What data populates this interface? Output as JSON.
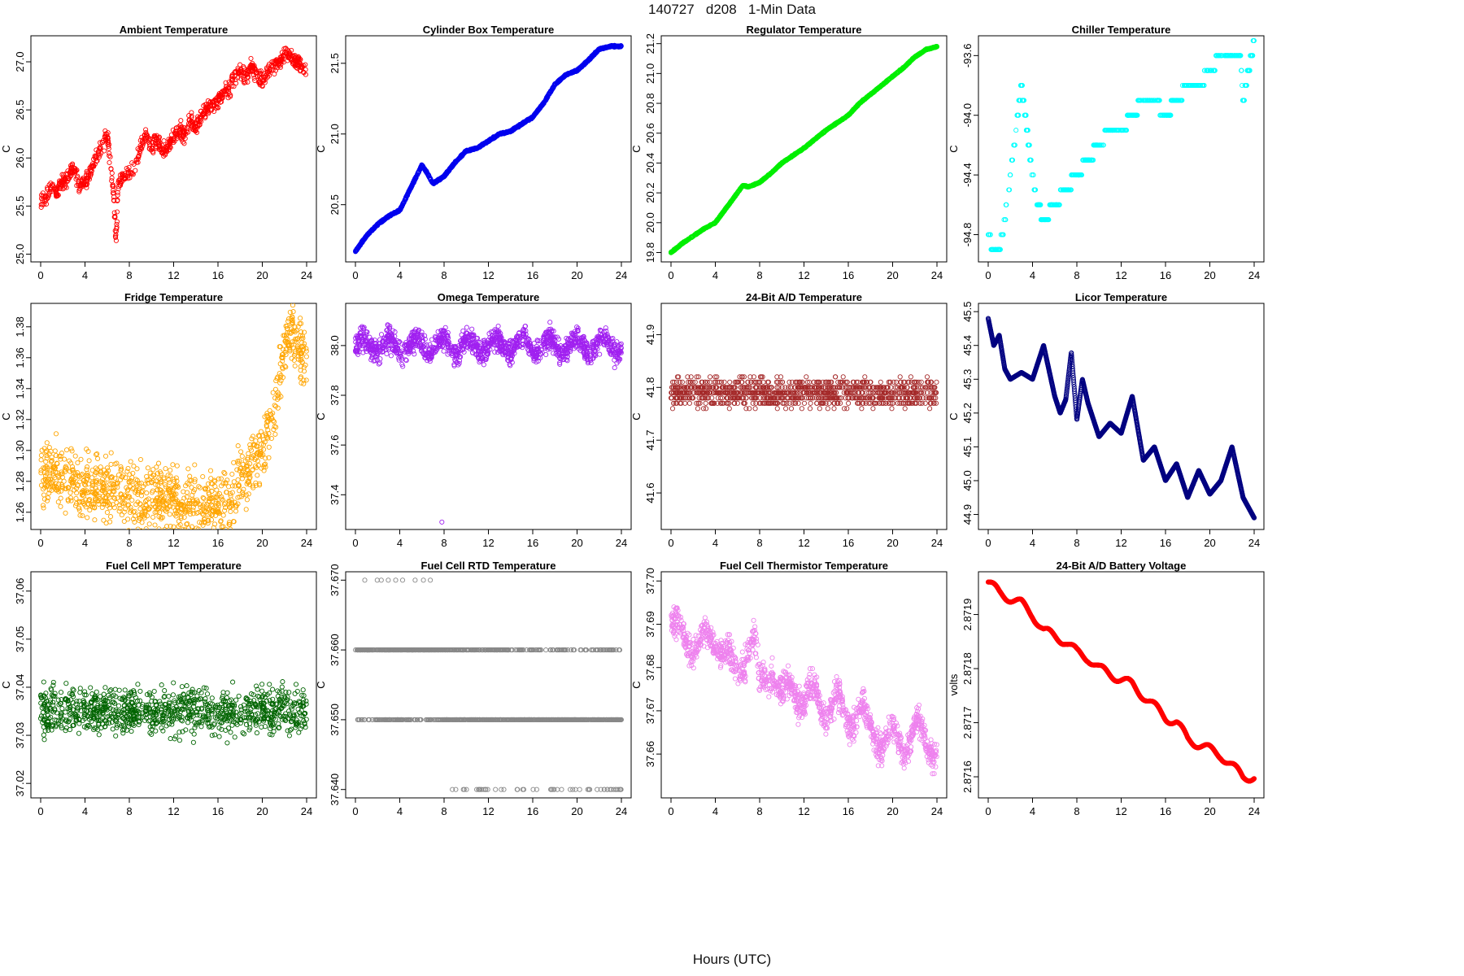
{
  "main_title": "140727   d208   1-Min Data",
  "x_axis_title": "Hours (UTC)",
  "chart_data": [
    {
      "type": "scatter",
      "title": "Ambient Temperature",
      "ylabel": "C",
      "color": "#ff0000",
      "xlim": [
        0,
        24
      ],
      "ylim": [
        24.97,
        27.22
      ],
      "xticks": [
        "0",
        "4",
        "8",
        "12",
        "16",
        "20",
        "24"
      ],
      "yticks": [
        "25.0",
        "25.5",
        "26.0",
        "26.5",
        "27.0"
      ],
      "x": [
        0,
        0.5,
        1,
        1.5,
        2,
        2.5,
        3,
        3.5,
        4,
        4.5,
        5,
        5.5,
        6,
        6.3,
        6.6,
        6.8,
        7,
        7.5,
        8,
        8.5,
        9,
        9.5,
        10,
        10.5,
        11,
        11.5,
        12,
        12.5,
        13,
        13.5,
        14,
        14.5,
        15,
        15.5,
        16,
        16.5,
        17,
        17.5,
        18,
        18.5,
        19,
        19.5,
        20,
        20.5,
        21,
        21.5,
        22,
        22.5,
        23,
        23.5,
        24
      ],
      "y": [
        25.55,
        25.6,
        25.7,
        25.65,
        25.75,
        25.8,
        25.9,
        25.7,
        25.75,
        25.85,
        26.0,
        26.1,
        26.25,
        25.9,
        25.6,
        25.1,
        25.75,
        25.8,
        25.85,
        25.9,
        26.1,
        26.25,
        26.1,
        26.2,
        26.05,
        26.15,
        26.2,
        26.3,
        26.25,
        26.4,
        26.3,
        26.45,
        26.5,
        26.55,
        26.6,
        26.7,
        26.7,
        26.85,
        26.9,
        26.85,
        26.95,
        26.85,
        26.8,
        26.9,
        26.95,
        27.0,
        27.1,
        27.05,
        27.0,
        26.95,
        26.9
      ],
      "noise": 0.12,
      "points": 900
    },
    {
      "type": "scatter",
      "title": "Cylinder Box Temperature",
      "ylabel": "C",
      "color": "#0000ee",
      "xlim": [
        0,
        24
      ],
      "ylim": [
        20.13,
        21.66
      ],
      "xticks": [
        "0",
        "4",
        "8",
        "12",
        "16",
        "20",
        "24"
      ],
      "yticks": [
        "20.5",
        "21.0",
        "21.5"
      ],
      "x": [
        0,
        1,
        2,
        3,
        4,
        5,
        6,
        6.5,
        7,
        8,
        9,
        10,
        11,
        12,
        13,
        14,
        15,
        16,
        17,
        18,
        19,
        20,
        21,
        22,
        23,
        24
      ],
      "y": [
        20.17,
        20.28,
        20.36,
        20.42,
        20.46,
        20.62,
        20.78,
        20.72,
        20.65,
        20.7,
        20.8,
        20.88,
        20.9,
        20.95,
        21.0,
        21.02,
        21.07,
        21.12,
        21.22,
        21.35,
        21.42,
        21.45,
        21.52,
        21.6,
        21.62,
        21.62
      ],
      "noise": 0.008,
      "points": 1440
    },
    {
      "type": "scatter",
      "title": "Regulator Temperature",
      "ylabel": "C",
      "color": "#00ee00",
      "xlim": [
        0,
        24
      ],
      "ylim": [
        19.77,
        21.22
      ],
      "xticks": [
        "0",
        "4",
        "8",
        "12",
        "16",
        "20",
        "24"
      ],
      "yticks": [
        "19.8",
        "20.0",
        "20.2",
        "20.4",
        "20.6",
        "20.8",
        "21.0",
        "21.2"
      ],
      "x": [
        0,
        1,
        2,
        3,
        4,
        5,
        6,
        6.5,
        7,
        8,
        9,
        10,
        11,
        12,
        13,
        14,
        15,
        16,
        17,
        18,
        19,
        20,
        21,
        22,
        23,
        24
      ],
      "y": [
        19.8,
        19.86,
        19.91,
        19.96,
        20.0,
        20.1,
        20.2,
        20.25,
        20.24,
        20.27,
        20.33,
        20.4,
        20.45,
        20.5,
        20.56,
        20.62,
        20.67,
        20.72,
        20.8,
        20.86,
        20.92,
        20.98,
        21.04,
        21.11,
        21.16,
        21.18
      ],
      "noise": 0.005,
      "points": 1440
    },
    {
      "type": "scatter",
      "title": "Chiller Temperature",
      "ylabel": "C",
      "color": "#00ffff",
      "xlim": [
        0,
        24
      ],
      "ylim": [
        -94.95,
        -93.5
      ],
      "xticks": [
        "0",
        "4",
        "8",
        "12",
        "16",
        "20",
        "24"
      ],
      "yticks": [
        "-94.8",
        "-94.4",
        "-94.0",
        "-93.6"
      ],
      "x": [
        0,
        0.5,
        1,
        1.5,
        2,
        2.5,
        3,
        3.5,
        4,
        4.5,
        5,
        6,
        7,
        8,
        9,
        10,
        11,
        12,
        13,
        14,
        15,
        16,
        17,
        18,
        19,
        20,
        21,
        22,
        22.8,
        23,
        23.5,
        24
      ],
      "y": [
        -94.8,
        -94.9,
        -94.9,
        -94.7,
        -94.4,
        -94.1,
        -93.8,
        -94.1,
        -94.4,
        -94.6,
        -94.7,
        -94.6,
        -94.5,
        -94.4,
        -94.3,
        -94.2,
        -94.1,
        -94.1,
        -94.0,
        -93.9,
        -93.9,
        -94.0,
        -93.9,
        -93.8,
        -93.8,
        -93.7,
        -93.6,
        -93.6,
        -93.6,
        -93.9,
        -93.7,
        -93.5
      ],
      "noise": 0.0,
      "points": 700,
      "step": 0.1
    },
    {
      "type": "scatter",
      "title": "Fridge Temperature",
      "ylabel": "C",
      "color": "#ffa500",
      "xlim": [
        0,
        24
      ],
      "ylim": [
        1.252,
        1.392
      ],
      "xticks": [
        "0",
        "4",
        "8",
        "12",
        "16",
        "20",
        "24"
      ],
      "yticks": [
        "1.26",
        "1.28",
        "1.30",
        "1.32",
        "1.34",
        "1.36",
        "1.38"
      ],
      "x": [
        0,
        1,
        2,
        3,
        4,
        6,
        8,
        10,
        12,
        14,
        16,
        17,
        17.5,
        18,
        19,
        20,
        21,
        21.5,
        22,
        22.5,
        23,
        23.5,
        24
      ],
      "y": [
        1.285,
        1.285,
        1.282,
        1.28,
        1.275,
        1.275,
        1.272,
        1.27,
        1.268,
        1.266,
        1.265,
        1.265,
        1.27,
        1.28,
        1.29,
        1.3,
        1.325,
        1.345,
        1.37,
        1.38,
        1.37,
        1.365,
        1.355
      ],
      "noise": 0.03,
      "points": 1100
    },
    {
      "type": "scatter",
      "title": "Omega Temperature",
      "ylabel": "C",
      "color": "#a020f0",
      "xlim": [
        0,
        24
      ],
      "ylim": [
        37.28,
        38.15
      ],
      "xticks": [
        "0",
        "4",
        "8",
        "12",
        "16",
        "20",
        "24"
      ],
      "yticks": [
        "37.4",
        "37.6",
        "37.8",
        "38.0"
      ],
      "x": [
        0,
        24
      ],
      "y": [
        38.0,
        38.0
      ],
      "noise": 0.06,
      "points": 1300,
      "wave": 0.06,
      "outlier": [
        7.8,
        37.29
      ]
    },
    {
      "type": "scatter",
      "title": "24-Bit A/D Temperature",
      "ylabel": "C",
      "color": "#a52a2a",
      "xlim": [
        0,
        24
      ],
      "ylim": [
        41.54,
        41.95
      ],
      "xticks": [
        "0",
        "4",
        "8",
        "12",
        "16",
        "20",
        "24"
      ],
      "yticks": [
        "41.6",
        "41.7",
        "41.8",
        "41.9"
      ],
      "x": [
        0,
        24
      ],
      "y": [
        41.79,
        41.79
      ],
      "noise": 0.04,
      "points": 1100,
      "step": 0.01
    },
    {
      "type": "scatter",
      "title": "Licor Temperature",
      "ylabel": "C",
      "color": "#000080",
      "xlim": [
        0,
        24
      ],
      "ylim": [
        44.87,
        45.51
      ],
      "xticks": [
        "0",
        "4",
        "8",
        "12",
        "16",
        "20",
        "24"
      ],
      "yticks": [
        "44.9",
        "45.0",
        "45.1",
        "45.2",
        "45.3",
        "45.4",
        "45.5"
      ],
      "x": [
        0,
        0.5,
        1,
        1.5,
        2,
        3,
        4,
        5,
        6,
        6.5,
        7,
        7.5,
        8,
        8.5,
        9,
        10,
        11,
        12,
        13,
        14,
        15,
        16,
        17,
        18,
        19,
        20,
        21,
        22,
        23,
        24
      ],
      "y": [
        45.48,
        45.4,
        45.43,
        45.33,
        45.3,
        45.32,
        45.3,
        45.4,
        45.25,
        45.2,
        45.24,
        45.38,
        45.18,
        45.3,
        45.23,
        45.13,
        45.17,
        45.14,
        45.25,
        45.06,
        45.1,
        45.0,
        45.05,
        44.95,
        45.03,
        44.96,
        45.0,
        45.1,
        44.95,
        44.89
      ],
      "noise": 0.0,
      "points": 1440,
      "smooth": true
    },
    {
      "type": "scatter",
      "title": "Fuel Cell MPT Temperature",
      "ylabel": "C",
      "color": "#006400",
      "xlim": [
        0,
        24
      ],
      "ylim": [
        37.018,
        37.063
      ],
      "xticks": [
        "0",
        "4",
        "8",
        "12",
        "16",
        "20",
        "24"
      ],
      "yticks": [
        "37.02",
        "37.03",
        "37.04",
        "37.05",
        "37.06"
      ],
      "x": [
        0,
        24
      ],
      "y": [
        37.035,
        37.035
      ],
      "noise": 0.007,
      "points": 1000
    },
    {
      "type": "scatter",
      "title": "Fuel Cell RTD Temperature",
      "ylabel": "C",
      "color": "#888888",
      "xlim": [
        0,
        24
      ],
      "ylim": [
        37.6395,
        37.6705
      ],
      "xticks": [
        "0",
        "4",
        "8",
        "12",
        "16",
        "20",
        "24"
      ],
      "yticks": [
        "37.640",
        "37.650",
        "37.660",
        "37.670"
      ],
      "levels": [
        37.64,
        37.65,
        37.66,
        37.67
      ]
    },
    {
      "type": "scatter",
      "title": "Fuel Cell Thermistor Temperature",
      "ylabel": "C",
      "color": "#ee82ee",
      "xlim": [
        0,
        24
      ],
      "ylim": [
        37.651,
        37.701
      ],
      "xticks": [
        "0",
        "4",
        "8",
        "12",
        "16",
        "20",
        "24"
      ],
      "yticks": [
        "37.66",
        "37.67",
        "37.68",
        "37.69",
        "37.70"
      ],
      "x": [
        0,
        1,
        2,
        3,
        4,
        5,
        6,
        7,
        7.5,
        8,
        9,
        10,
        11,
        12,
        13,
        14,
        15,
        16,
        17,
        18,
        19,
        20,
        21,
        22,
        23,
        24
      ],
      "y": [
        37.69,
        37.688,
        37.685,
        37.686,
        37.687,
        37.683,
        37.678,
        37.685,
        37.687,
        37.675,
        37.68,
        37.673,
        37.676,
        37.672,
        37.674,
        37.67,
        37.672,
        37.668,
        37.67,
        37.666,
        37.663,
        37.664,
        37.662,
        37.666,
        37.663,
        37.661
      ],
      "noise": 0.004,
      "points": 1300,
      "wave": 0.005
    },
    {
      "type": "scatter",
      "title": "24-Bit A/D Battery Voltage",
      "ylabel": "volts",
      "color": "#ff0000",
      "xlim": [
        0,
        24
      ],
      "ylim": [
        2.87157,
        2.87197
      ],
      "xticks": [
        "0",
        "4",
        "8",
        "12",
        "16",
        "20",
        "24"
      ],
      "yticks": [
        "2.8716",
        "2.8717",
        "2.8718",
        "2.8719"
      ],
      "x": [
        0,
        1,
        2,
        3,
        4,
        5,
        6,
        7,
        8,
        9,
        10,
        11,
        12,
        13,
        14,
        15,
        16,
        17,
        18,
        19,
        20,
        21,
        22,
        23,
        24
      ],
      "y": [
        2.87196,
        2.87194,
        2.87193,
        2.87192,
        2.8719,
        2.87187,
        2.87186,
        2.87185,
        2.87183,
        2.87182,
        2.8718,
        2.87179,
        2.87178,
        2.87177,
        2.87175,
        2.87173,
        2.87171,
        2.8717,
        2.87167,
        2.87166,
        2.87165,
        2.87164,
        2.87162,
        2.8716,
        2.8716
      ],
      "noise": 0.0,
      "points": 1440,
      "smooth": true,
      "wave": 8e-06
    }
  ]
}
